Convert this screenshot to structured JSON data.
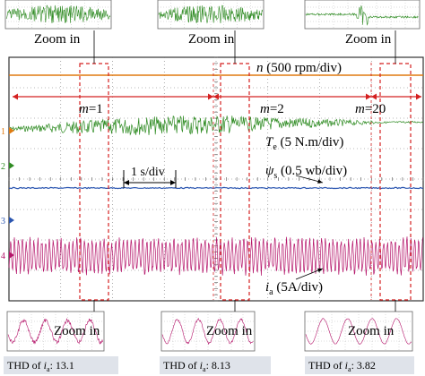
{
  "chart_data": {
    "type": "line",
    "series": [
      {
        "name": "",
        "marker": "1",
        "color": "#2e8b22"
      },
      {
        "name": "",
        "marker": "2",
        "color": "#2e8b22"
      },
      {
        "name": "",
        "marker": "3",
        "color": "#2a55b0"
      },
      {
        "name": "",
        "marker": "4",
        "color": "#b5146a"
      }
    ],
    "segments": [
      {
        "label": "m=1"
      },
      {
        "label": "m=2"
      },
      {
        "label": "m=20"
      }
    ],
    "annotations": {
      "speed": {
        "sym": "n",
        "rest": " (500 rpm/div)"
      },
      "torque": {
        "sym": "T",
        "sub": "e",
        "rest": " (5 N.m/div)"
      },
      "flux": {
        "sym": "ψ",
        "sub": "s",
        "rest": " (0.5 wb/div)"
      },
      "current": {
        "sym": "i",
        "sub": "a",
        "rest": " (5A/div)"
      },
      "timebase": "1 s/div"
    },
    "zoom_label": "Zoom in",
    "thd": [
      {
        "prefix": "THD of ",
        "sym": "i",
        "sub": "a",
        "sep": ": ",
        "value": "13.1"
      },
      {
        "prefix": "THD of ",
        "sym": "i",
        "sub": "a",
        "sep": ": ",
        "value": "8.13"
      },
      {
        "prefix": "THD of ",
        "sym": "i",
        "sub": "a",
        "sep": ": ",
        "value": "3.82"
      }
    ],
    "grid": true,
    "colors": {
      "speed": "#e07a10",
      "torque": "#2e8b22",
      "flux": "#2a55b0",
      "current": "#b5146a",
      "annotation": "#d42020"
    }
  }
}
